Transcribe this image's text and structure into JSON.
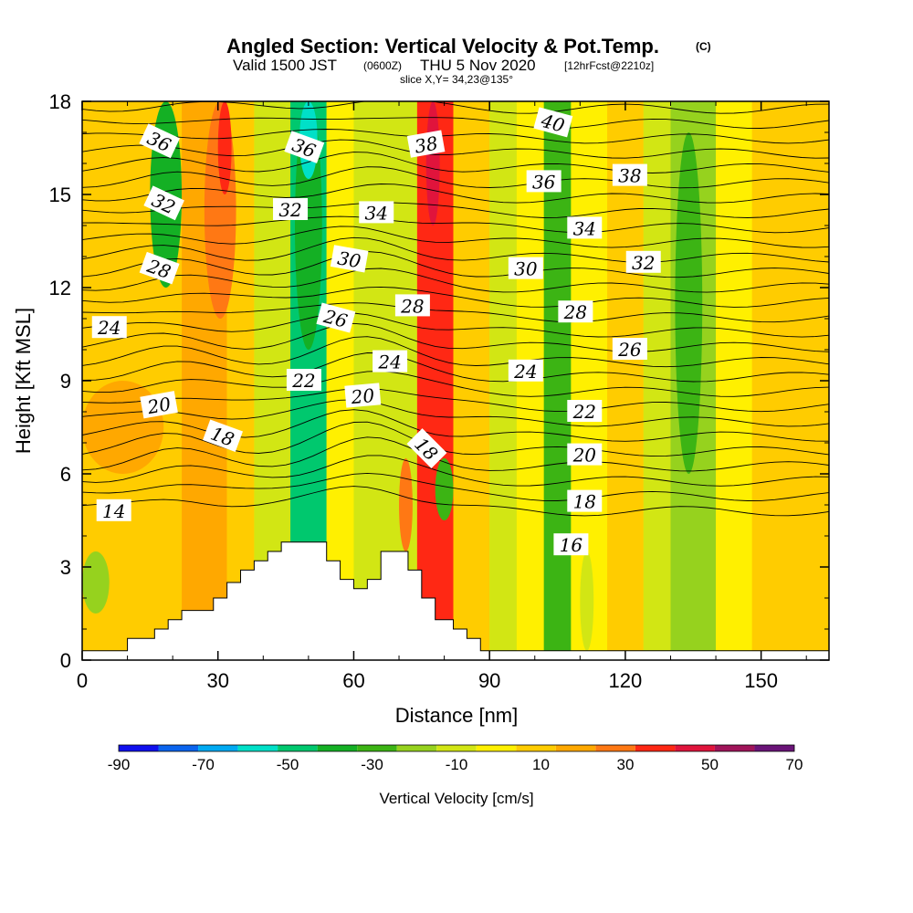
{
  "chart_data": {
    "type": "heatmap",
    "title": {
      "main": "Angled Section: Vertical Velocity & Pot.Temp.",
      "unit_tag": "(C)",
      "valid_pre": "Valid 1500 JST",
      "valid_z": "(0600Z)",
      "valid_date": "THU 5 Nov 2020",
      "fcst": "[12hrFcst@2210z]",
      "slice": "slice X,Y= 34,23@135°"
    },
    "xlabel": "Distance [nm]",
    "ylabel": "Height [Kft MSL]",
    "xlim": [
      0,
      165
    ],
    "ylim": [
      0,
      18
    ],
    "xticks": [
      "0",
      "30",
      "60",
      "90",
      "120",
      "150"
    ],
    "yticks": [
      "0",
      "3",
      "6",
      "9",
      "12",
      "15",
      "18"
    ],
    "colorbar": {
      "label": "Vertical Velocity [cm/s]",
      "tick_labels": [
        "-90",
        "-70",
        "-50",
        "-30",
        "-10",
        "10",
        "30",
        "50",
        "70"
      ],
      "bins": [
        -90,
        -80,
        -70,
        -60,
        -50,
        -40,
        -30,
        -20,
        -10,
        0,
        10,
        20,
        30,
        40,
        50,
        60,
        70
      ],
      "colors": [
        "#1010ee",
        "#0a64ee",
        "#00aaf2",
        "#00e0c8",
        "#00c86e",
        "#14b024",
        "#3cb414",
        "#96d21e",
        "#d2e614",
        "#fff000",
        "#ffcc00",
        "#ffa800",
        "#ff7814",
        "#ff2814",
        "#e0143c",
        "#a0145a",
        "#6a1478"
      ]
    },
    "velocity_bands": [
      {
        "x": [
          0,
          22
        ],
        "v": 15
      },
      {
        "x": [
          22,
          32
        ],
        "v": 25
      },
      {
        "x": [
          32,
          38
        ],
        "v": 10
      },
      {
        "x": [
          38,
          46
        ],
        "v": -5
      },
      {
        "x": [
          46,
          54
        ],
        "v": -45
      },
      {
        "x": [
          54,
          60
        ],
        "v": 5
      },
      {
        "x": [
          60,
          74
        ],
        "v": -5
      },
      {
        "x": [
          74,
          82
        ],
        "v": 45
      },
      {
        "x": [
          82,
          90
        ],
        "v": 10
      },
      {
        "x": [
          90,
          96
        ],
        "v": -10
      },
      {
        "x": [
          96,
          102
        ],
        "v": 5
      },
      {
        "x": [
          102,
          108
        ],
        "v": -25
      },
      {
        "x": [
          108,
          116
        ],
        "v": 5
      },
      {
        "x": [
          116,
          124
        ],
        "v": 15
      },
      {
        "x": [
          124,
          130
        ],
        "v": -5
      },
      {
        "x": [
          130,
          140
        ],
        "v": -20
      },
      {
        "x": [
          140,
          148
        ],
        "v": 5
      },
      {
        "x": [
          148,
          165
        ],
        "v": 15
      }
    ],
    "velocity_cells": [
      {
        "x": [
          15,
          22
        ],
        "y": [
          12,
          18
        ],
        "v": -35
      },
      {
        "x": [
          27,
          34
        ],
        "y": [
          11,
          18
        ],
        "v": 35
      },
      {
        "x": [
          30,
          33
        ],
        "y": [
          15,
          18
        ],
        "v": 45
      },
      {
        "x": [
          47,
          53
        ],
        "y": [
          10,
          18
        ],
        "v": -40
      },
      {
        "x": [
          48,
          52
        ],
        "y": [
          15.5,
          18
        ],
        "v": -55
      },
      {
        "x": [
          75,
          81
        ],
        "y": [
          10,
          18
        ],
        "v": 40
      },
      {
        "x": [
          76,
          79
        ],
        "y": [
          14,
          18
        ],
        "v": 50
      },
      {
        "x": [
          103,
          107
        ],
        "y": [
          9,
          17
        ],
        "v": -25
      },
      {
        "x": [
          131,
          137
        ],
        "y": [
          6,
          17
        ],
        "v": -25
      },
      {
        "x": [
          78,
          82
        ],
        "y": [
          4.5,
          6.5
        ],
        "v": -30
      },
      {
        "x": [
          70,
          73
        ],
        "y": [
          3.5,
          6.5
        ],
        "v": 30
      },
      {
        "x": [
          0,
          6
        ],
        "y": [
          1.5,
          3.5
        ],
        "v": -12
      },
      {
        "x": [
          110,
          113
        ],
        "y": [
          0.3,
          3.5
        ],
        "v": -10
      },
      {
        "x": [
          0,
          18
        ],
        "y": [
          6,
          9
        ],
        "v": 25
      }
    ],
    "pot_temp_contour_labels": [
      {
        "text": "14",
        "x": 7,
        "y": 4.8,
        "angle": 0
      },
      {
        "text": "16",
        "x": 108,
        "y": 3.7,
        "angle": 0
      },
      {
        "text": "18",
        "x": 31,
        "y": 7.2,
        "angle": 20
      },
      {
        "text": "18",
        "x": 76,
        "y": 6.8,
        "angle": 45
      },
      {
        "text": "18",
        "x": 111,
        "y": 5.1,
        "angle": 0
      },
      {
        "text": "20",
        "x": 17,
        "y": 8.2,
        "angle": -10
      },
      {
        "text": "20",
        "x": 62,
        "y": 8.5,
        "angle": -5
      },
      {
        "text": "20",
        "x": 111,
        "y": 6.6,
        "angle": 0
      },
      {
        "text": "22",
        "x": 49,
        "y": 9.0,
        "angle": 0
      },
      {
        "text": "22",
        "x": 111,
        "y": 8.0,
        "angle": 0
      },
      {
        "text": "24",
        "x": 6,
        "y": 10.7,
        "angle": 0
      },
      {
        "text": "24",
        "x": 68,
        "y": 9.6,
        "angle": 0
      },
      {
        "text": "24",
        "x": 98,
        "y": 9.3,
        "angle": 0
      },
      {
        "text": "26",
        "x": 56,
        "y": 11.0,
        "angle": 15
      },
      {
        "text": "26",
        "x": 121,
        "y": 10.0,
        "angle": 0
      },
      {
        "text": "28",
        "x": 17,
        "y": 12.6,
        "angle": 20
      },
      {
        "text": "28",
        "x": 73,
        "y": 11.4,
        "angle": 0
      },
      {
        "text": "28",
        "x": 109,
        "y": 11.2,
        "angle": 0
      },
      {
        "text": "30",
        "x": 59,
        "y": 12.9,
        "angle": 10
      },
      {
        "text": "30",
        "x": 98,
        "y": 12.6,
        "angle": 0
      },
      {
        "text": "32",
        "x": 18,
        "y": 14.7,
        "angle": 25
      },
      {
        "text": "32",
        "x": 46,
        "y": 14.5,
        "angle": 0
      },
      {
        "text": "32",
        "x": 124,
        "y": 12.8,
        "angle": 0
      },
      {
        "text": "34",
        "x": 65,
        "y": 14.4,
        "angle": 0
      },
      {
        "text": "34",
        "x": 111,
        "y": 13.9,
        "angle": 0
      },
      {
        "text": "36",
        "x": 17,
        "y": 16.7,
        "angle": 25
      },
      {
        "text": "36",
        "x": 49,
        "y": 16.5,
        "angle": 20
      },
      {
        "text": "36",
        "x": 102,
        "y": 15.4,
        "angle": 0
      },
      {
        "text": "38",
        "x": 76,
        "y": 16.6,
        "angle": -10
      },
      {
        "text": "38",
        "x": 121,
        "y": 15.6,
        "angle": 0
      },
      {
        "text": "40",
        "x": 104,
        "y": 17.3,
        "angle": 15
      }
    ],
    "terrain": [
      [
        0,
        0.3
      ],
      [
        10,
        0.3
      ],
      [
        10,
        0.7
      ],
      [
        16,
        0.7
      ],
      [
        16,
        1.0
      ],
      [
        19,
        1.0
      ],
      [
        19,
        1.3
      ],
      [
        22,
        1.3
      ],
      [
        22,
        1.6
      ],
      [
        29,
        1.6
      ],
      [
        29,
        2.0
      ],
      [
        32,
        2.0
      ],
      [
        32,
        2.5
      ],
      [
        35,
        2.5
      ],
      [
        35,
        2.9
      ],
      [
        38,
        2.9
      ],
      [
        38,
        3.2
      ],
      [
        41,
        3.2
      ],
      [
        41,
        3.5
      ],
      [
        44,
        3.5
      ],
      [
        44,
        3.8
      ],
      [
        54,
        3.8
      ],
      [
        54,
        3.2
      ],
      [
        57,
        3.2
      ],
      [
        57,
        2.6
      ],
      [
        60,
        2.6
      ],
      [
        60,
        2.3
      ],
      [
        63,
        2.3
      ],
      [
        63,
        2.6
      ],
      [
        66,
        2.6
      ],
      [
        66,
        3.5
      ],
      [
        72,
        3.5
      ],
      [
        72,
        2.9
      ],
      [
        75,
        2.9
      ],
      [
        75,
        2.0
      ],
      [
        78,
        2.0
      ],
      [
        78,
        1.3
      ],
      [
        82,
        1.3
      ],
      [
        82,
        1.0
      ],
      [
        85,
        1.0
      ],
      [
        85,
        0.7
      ],
      [
        88,
        0.7
      ],
      [
        88,
        0.3
      ],
      [
        165,
        0.3
      ]
    ],
    "grid": false
  }
}
